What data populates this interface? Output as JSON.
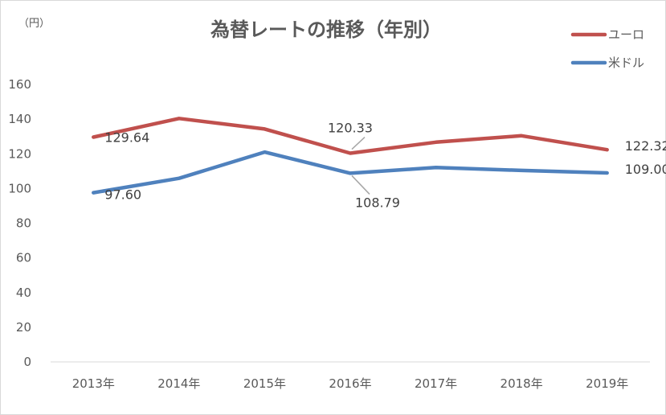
{
  "chart_data": {
    "type": "line",
    "title": "為替レートの推移（年別）",
    "unit_label": "（円）",
    "categories": [
      "2013年",
      "2014年",
      "2015年",
      "2016年",
      "2017年",
      "2018年",
      "2019年"
    ],
    "ylim": [
      0,
      160
    ],
    "yticks": [
      0,
      20,
      40,
      60,
      80,
      100,
      120,
      140,
      160
    ],
    "grid": false,
    "legend": "top-right",
    "series": [
      {
        "name": "米ドル",
        "color": "#4f81bd",
        "values": [
          97.6,
          105.9,
          121.0,
          108.79,
          112.1,
          110.4,
          109.0
        ],
        "labels": [
          "97.60",
          "",
          "",
          "108.79",
          "",
          "",
          "109.00"
        ]
      },
      {
        "name": "ユーロ",
        "color": "#c0504d",
        "values": [
          129.64,
          140.4,
          134.3,
          120.33,
          126.7,
          130.4,
          122.32
        ],
        "labels": [
          "129.64",
          "",
          "",
          "120.33",
          "",
          "",
          "122.32"
        ]
      }
    ]
  }
}
